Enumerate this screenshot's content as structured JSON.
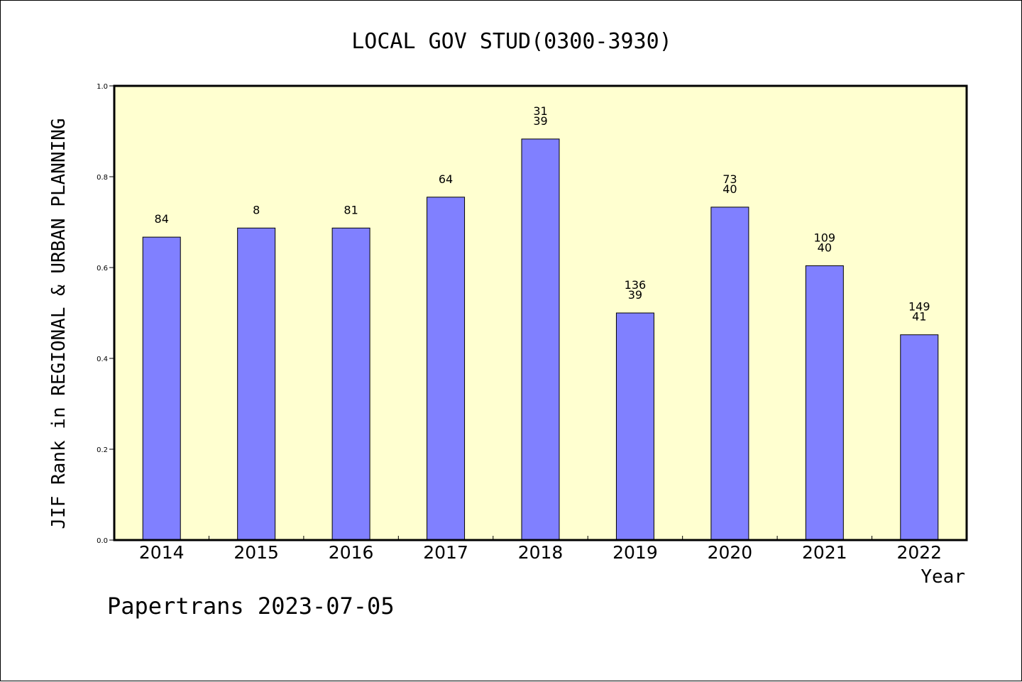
{
  "chart_data": {
    "type": "bar",
    "title": "LOCAL GOV STUD(0300-3930)",
    "xlabel": "Year",
    "ylabel": "JIF Rank in REGIONAL & URBAN PLANNING",
    "footer": "Papertrans 2023-07-05",
    "ylim": [
      0,
      1.0
    ],
    "yticks": [
      "0.0",
      "0.2",
      "0.4",
      "0.6",
      "0.8",
      "1.0"
    ],
    "categories": [
      "2014",
      "2015",
      "2016",
      "2017",
      "2018",
      "2019",
      "2020",
      "2021",
      "2022"
    ],
    "values": [
      0.667,
      0.687,
      0.687,
      0.755,
      0.883,
      0.5,
      0.733,
      0.604,
      0.452
    ],
    "bar_labels": [
      [
        "84"
      ],
      [
        "8"
      ],
      [
        "81"
      ],
      [
        "64"
      ],
      [
        "31",
        "39"
      ],
      [
        "136",
        "39"
      ],
      [
        "73",
        "40"
      ],
      [
        "109",
        "40"
      ],
      [
        "149",
        "41"
      ]
    ],
    "grid": false,
    "legend": "none",
    "colors": {
      "plot_background": "#ffffd0",
      "bar_fill": "#8080ff",
      "bar_stroke": "#000000",
      "axis": "#000000"
    }
  }
}
